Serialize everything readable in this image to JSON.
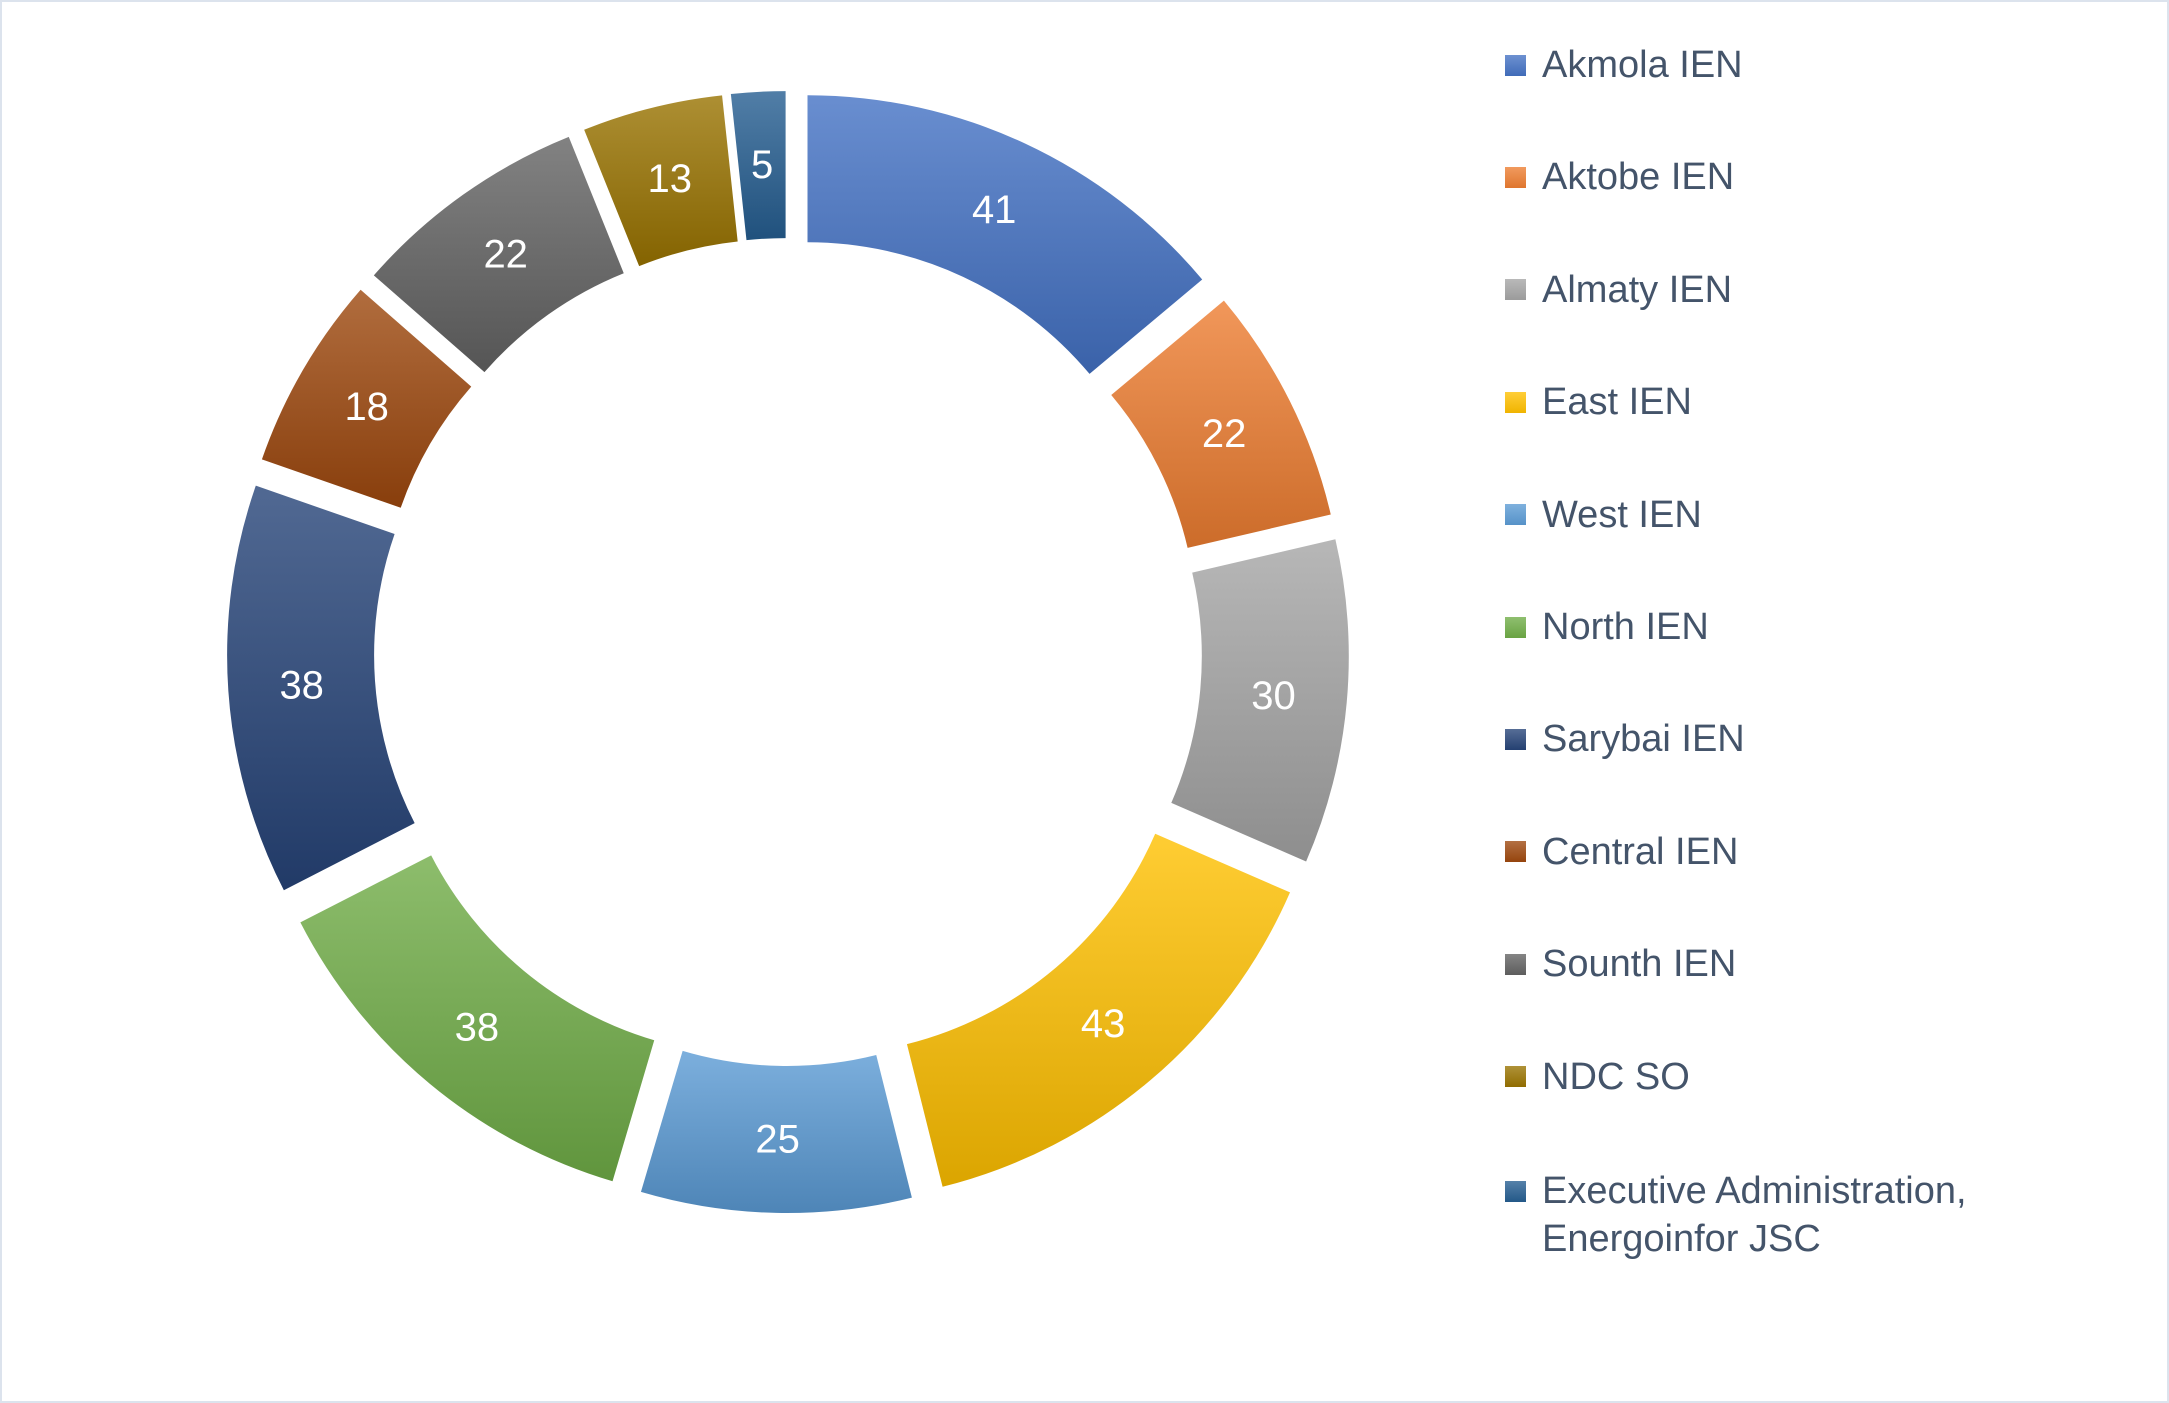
{
  "chart_data": {
    "type": "pie",
    "subtype": "doughnut-exploded",
    "categories": [
      "Akmola IEN",
      "Aktobe IEN",
      "Almaty IEN",
      "East IEN",
      "West IEN",
      "North IEN",
      "Sarybai IEN",
      "Central IEN",
      "Sounth IEN",
      "NDC SO",
      "Executive Administration, Energoinfor JSC"
    ],
    "values": [
      41,
      22,
      30,
      43,
      25,
      38,
      38,
      18,
      22,
      13,
      5
    ],
    "colors": [
      "#4472C4",
      "#ED7D31",
      "#A5A5A5",
      "#FFC000",
      "#5B9BD5",
      "#70AD47",
      "#264478",
      "#9E480E",
      "#636363",
      "#997300",
      "#255E91"
    ],
    "total": 295,
    "data_labels": [
      "41",
      "22",
      "30",
      "43",
      "25",
      "38",
      "38",
      "18",
      "22",
      "13",
      "5"
    ],
    "data_label_color": "#FFFFFF",
    "start_angle_deg": 0,
    "direction": "clockwise",
    "hole_ratio": 0.71,
    "legend_position": "right",
    "grid": "off",
    "title": ""
  },
  "legend": {
    "items": [
      {
        "label": "Akmola IEN",
        "color": "#4472C4"
      },
      {
        "label": "Aktobe IEN",
        "color": "#ED7D31"
      },
      {
        "label": "Almaty IEN",
        "color": "#A5A5A5"
      },
      {
        "label": "East IEN",
        "color": "#FFC000"
      },
      {
        "label": "West IEN",
        "color": "#5B9BD5"
      },
      {
        "label": "North IEN",
        "color": "#70AD47"
      },
      {
        "label": "Sarybai IEN",
        "color": "#264478"
      },
      {
        "label": "Central IEN",
        "color": "#9E480E"
      },
      {
        "label": "Sounth IEN",
        "color": "#636363"
      },
      {
        "label": "NDC SO",
        "color": "#997300"
      },
      {
        "label": "Executive Administration, Energoinfor JSC",
        "color": "#255E91"
      }
    ]
  },
  "canvas": {
    "background": "#FFFFFF",
    "frame_border_color": "#DCE3ED",
    "legend_text_color": "#44546A"
  }
}
